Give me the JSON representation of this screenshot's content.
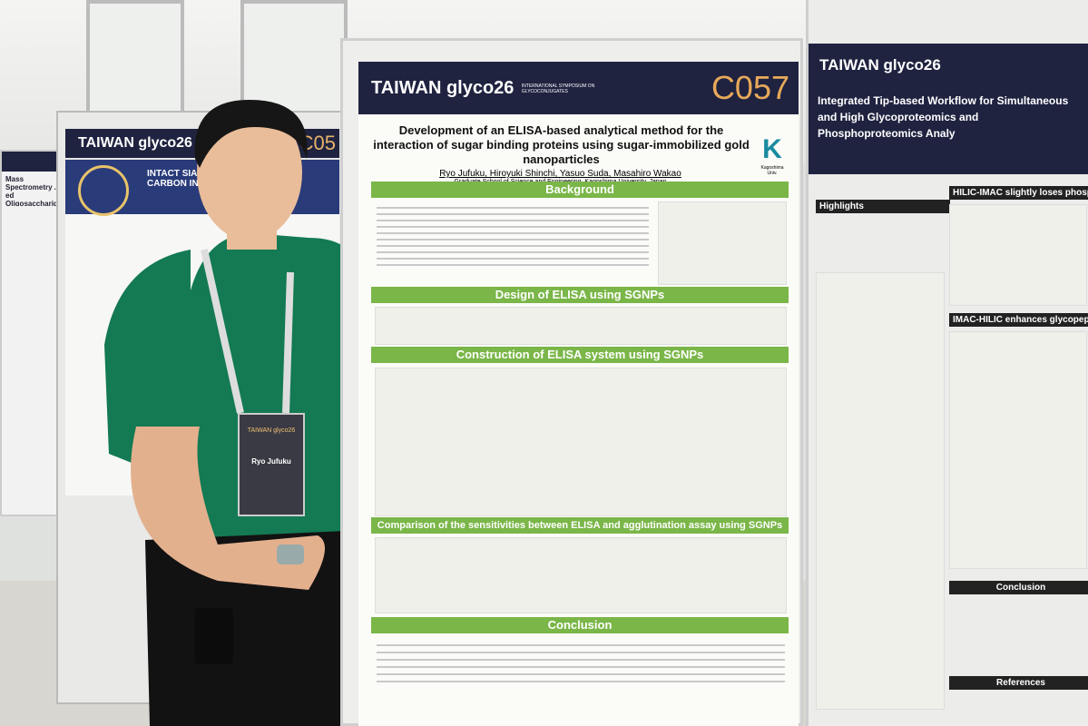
{
  "left_poster": {
    "brand": "TAIWAN glyco26",
    "code": "C05",
    "title": "INTACT SIALYLATED ... GRAPHITIC CARBON IN ULTRA ... ISOMERIC"
  },
  "far_left_poster": {
    "title": "Mass Spectrometry ... ed Oligosaccharides fr"
  },
  "center_poster": {
    "brand": "TAIWAN glyco26",
    "brand_sub": "INTERNATIONAL SYMPOSIUM ON GLYCOCONJUGATES",
    "code": "C057",
    "title": "Development of an ELISA-based analytical method for the interaction of sugar binding proteins using sugar-immobilized gold nanoparticles",
    "authors": "Ryo Jufuku, Hiroyuki Shinchi, Yasuo Suda, Masahiro Wakao",
    "affiliation": "Graduate School of Science and Engineering, Kagoshima University, Japan",
    "logo_caption": "Kagoshima Univ.",
    "sections": [
      "Background",
      "Design of ELISA using SGNPs",
      "Construction of ELISA system using SGNPs",
      "Comparison of the sensitivities between ELISA and agglutination assay using SGNPs",
      "Conclusion"
    ]
  },
  "right_poster": {
    "brand": "TAIWAN glyco26",
    "title": "Integrated Tip-based Workflow for Simultaneous and High Glycoproteomics and Phosphoproteomics Analy",
    "headings": [
      "Highlights",
      "HILIC-IMAC slightly loses phosphopept",
      "IMAC-HILIC enhances glycopeptides enric",
      "Conclusion",
      "References"
    ]
  },
  "badge": {
    "event": "TAIWAN glyco26",
    "name": "Ryo Jufuku"
  }
}
